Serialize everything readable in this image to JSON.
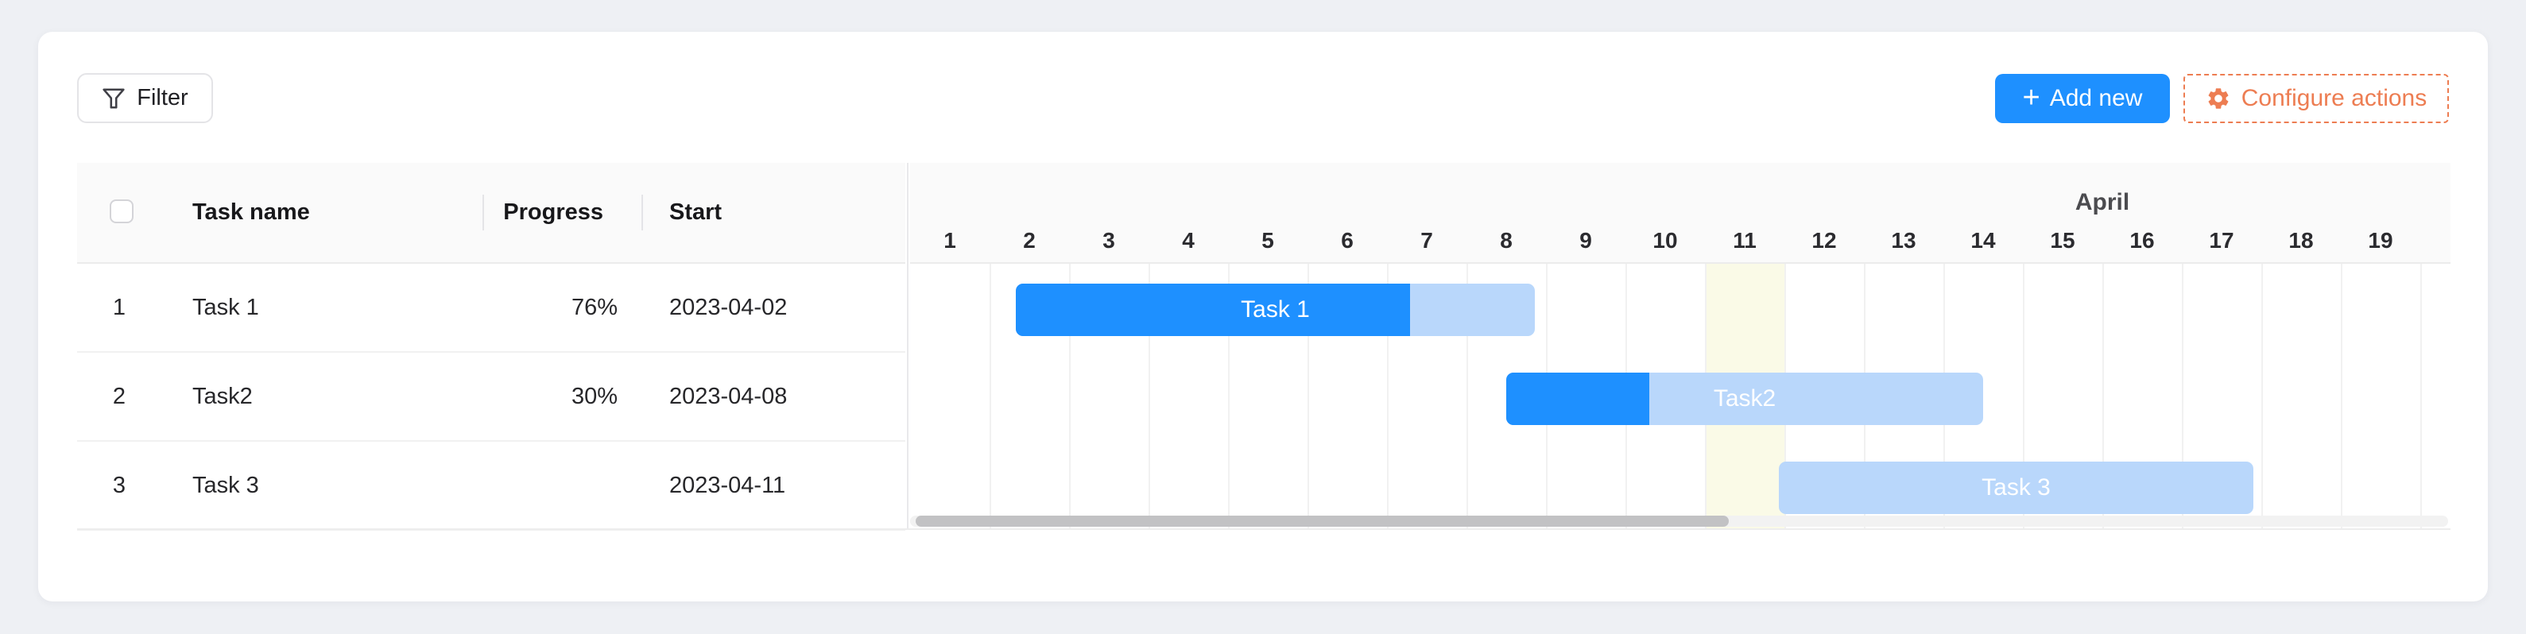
{
  "toolbar": {
    "filter_label": "Filter",
    "add_new_label": "Add new",
    "configure_label": "Configure actions"
  },
  "table": {
    "headers": {
      "name": "Task name",
      "progress": "Progress",
      "start": "Start"
    },
    "rows": [
      {
        "num": "1",
        "name": "Task 1",
        "progress": "76%",
        "start": "2023-04-02"
      },
      {
        "num": "2",
        "name": "Task2",
        "progress": "30%",
        "start": "2023-04-08"
      },
      {
        "num": "3",
        "name": "Task 3",
        "progress": "",
        "start": "2023-04-11"
      }
    ]
  },
  "gantt": {
    "month_label": "April",
    "days": [
      1,
      2,
      3,
      4,
      5,
      6,
      7,
      8,
      9,
      10,
      11,
      12,
      13,
      14,
      15,
      16,
      17,
      18,
      19
    ],
    "today_day": 11,
    "tasks": [
      {
        "label": "Task 1",
        "start_day": 2.33,
        "end_day": 8.86,
        "progress_pct": 76
      },
      {
        "label": "Task2",
        "start_day": 8.5,
        "end_day": 14.5,
        "progress_pct": 30
      },
      {
        "label": "Task 3",
        "start_day": 11.93,
        "end_day": 17.9,
        "progress_pct": 0
      }
    ]
  },
  "colors": {
    "accent_blue": "#1e90ff",
    "bar_light_blue": "#b9d7fb",
    "accent_orange": "#ed7d52",
    "today_highlight": "#fafae7"
  }
}
